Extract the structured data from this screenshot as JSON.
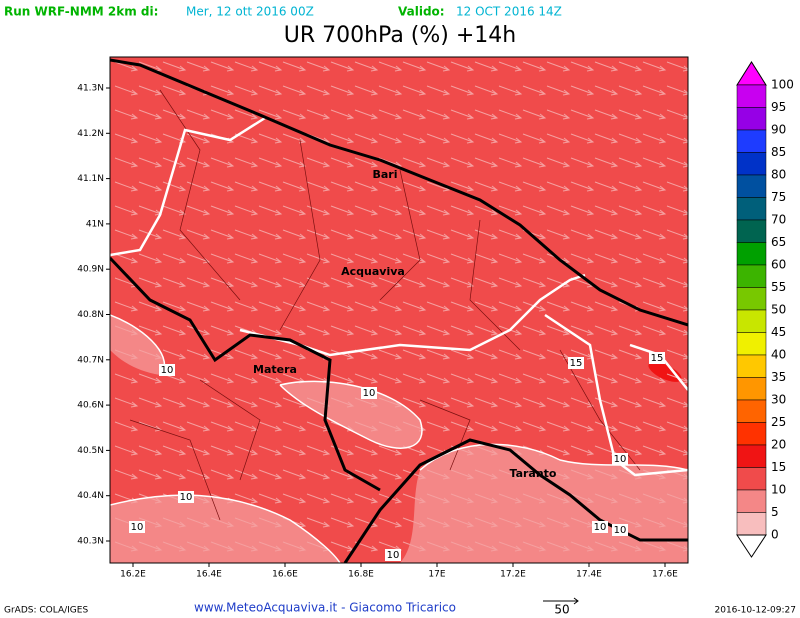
{
  "header": {
    "run_label": "Run WRF-NMM 2km di:",
    "run_date": "Mer, 12 ott 2016 00Z",
    "valid_label": "Valido:",
    "valid_date": "12 OCT 2016 14Z",
    "title": "UR 700hPa (%) +14h"
  },
  "map": {
    "lat_labels": [
      "41.3N",
      "41.2N",
      "41.1N",
      "41N",
      "40.9N",
      "40.8N",
      "40.7N",
      "40.6N",
      "40.5N",
      "40.4N",
      "40.3N"
    ],
    "lon_labels": [
      "16.2E",
      "16.4E",
      "16.6E",
      "16.8E",
      "17E",
      "17.2E",
      "17.4E",
      "17.6E"
    ],
    "places": [
      "Bari",
      "Acquaviva",
      "Matera",
      "Taranto"
    ],
    "contour_labels": [
      "10",
      "10",
      "10",
      "10",
      "10",
      "10",
      "10",
      "10",
      "15",
      "15"
    ]
  },
  "colorbar": {
    "labels": [
      "100",
      "95",
      "90",
      "85",
      "80",
      "75",
      "70",
      "65",
      "60",
      "55",
      "50",
      "45",
      "40",
      "35",
      "30",
      "25",
      "20",
      "15",
      "10",
      "5",
      "0"
    ],
    "colors": [
      "#ff00ff",
      "#c800f0",
      "#9600e6",
      "#1e3cff",
      "#0032c8",
      "#0050a0",
      "#005f7a",
      "#006450",
      "#00a000",
      "#3cb400",
      "#78c800",
      "#c8e600",
      "#f0f000",
      "#ffc800",
      "#ff9600",
      "#ff6400",
      "#ff3200",
      "#f01414",
      "#f04b4b",
      "#f48787",
      "#f8bebe",
      "#ffffff"
    ]
  },
  "footer": {
    "credit": "GrADS: COLA/IGES",
    "site": "www.MeteoAcquaviva.it - Giacomo Tricarico",
    "vector_scale": "50",
    "timestamp": "2016-10-12-09:27"
  }
}
